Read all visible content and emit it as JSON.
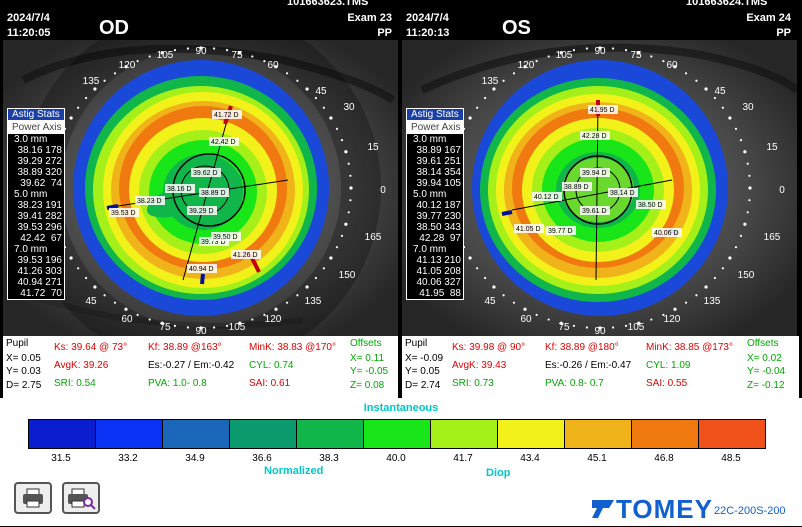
{
  "od": {
    "file": "101663623.TMS",
    "date": "2024/7/4",
    "time": "11:20:05",
    "exam": "Exam 23",
    "pp": "PP",
    "eye": "OD",
    "dial_labels": {
      "d90": "90",
      "d105": "105",
      "d120": "120",
      "d135": "135",
      "d150": "150",
      "d165": "165",
      "d0": "0",
      "d15": "15",
      "d30": "30",
      "d45": "45",
      "d60": "60",
      "d75": "75"
    },
    "dial_labels_bottom": {
      "d90": "90",
      "d105": "105",
      "d120": "120",
      "d135": "135",
      "d150": "150",
      "d165": "165",
      "d45": "45",
      "d60": "60",
      "d75": "75"
    },
    "map_labels": [
      "41.72 D",
      "42.42 D",
      "39.62 D",
      "38.16 D",
      "38.23 D",
      "38.89 D",
      "39.53 D",
      "39.29 D",
      "39.73 D",
      "39.50 D",
      "41.26 D",
      "40.94 D"
    ],
    "stats": {
      "hd1": "Astig Stats",
      "hd2": "Power Axis",
      "groups": [
        {
          "mm": "3.0 mm",
          "rows": [
            "38.16 178",
            "39.29 272",
            "38.89 320",
            "39.62  74"
          ]
        },
        {
          "mm": "5.0 mm",
          "rows": [
            "38.23 191",
            "39.41 282",
            "39.53 296",
            "42.42  67"
          ]
        },
        {
          "mm": "7.0 mm",
          "rows": [
            "39.53 196",
            "41.26 303",
            "40.94 271",
            "41.72  70"
          ]
        }
      ]
    },
    "info": {
      "pupil": "Pupil",
      "x": "X=  0.05",
      "y": "Y=  0.03",
      "d": "D=  2.75",
      "ks": "Ks: 39.64 @ 73°",
      "kf": "Kf: 38.89 @163°",
      "mink": "MinK: 38.83 @170°",
      "avgk": "AvgK: 39.26",
      "es": "Es:-0.27 / Em:-0.42",
      "cyl": "CYL:  0.74",
      "sri": "SRI:  0.54",
      "pva": "PVA:  1.0-  0.8",
      "sai": "SAI:  0.61",
      "offsets": "Offsets",
      "ox": "X=  0.11",
      "oy": "Y= -0.05",
      "oz": "Z=  0.08"
    }
  },
  "os": {
    "file": "101663624.TMS",
    "date": "2024/7/4",
    "time": "11:20:13",
    "exam": "Exam 24",
    "pp": "PP",
    "eye": "OS",
    "dial_labels": {
      "d90": "90",
      "d105": "105",
      "d120": "120",
      "d135": "135",
      "d150": "150",
      "d165": "165",
      "d0": "0",
      "d15": "15",
      "d30": "30",
      "d45": "45",
      "d60": "60",
      "d75": "75"
    },
    "dial_labels_bottom": {
      "d90": "90",
      "d105": "105",
      "d120": "120",
      "d135": "135",
      "d150": "150",
      "d165": "165",
      "d45": "45",
      "d60": "60",
      "d75": "75"
    },
    "map_labels": [
      "41.95 D",
      "42.28 D",
      "39.94 D",
      "38.89 D",
      "38.14 D",
      "40.12 D",
      "38.50 D",
      "39.61 D",
      "39.77 D",
      "41.05 D",
      "40.06 D"
    ],
    "stats": {
      "hd1": "Astig Stats",
      "hd2": "Power Axis",
      "groups": [
        {
          "mm": "3.0 mm",
          "rows": [
            "38.89 167",
            "39.61 251",
            "38.14 354",
            "39.94 105"
          ]
        },
        {
          "mm": "5.0 mm",
          "rows": [
            "40.12 187",
            "39.77 230",
            "38.50 343",
            "42.28  97"
          ]
        },
        {
          "mm": "7.0 mm",
          "rows": [
            "41.13 210",
            "41.05 208",
            "40.06 327",
            "41.95  88"
          ]
        }
      ]
    },
    "info": {
      "pupil": "Pupil",
      "x": "X= -0.09",
      "y": "Y=  0.05",
      "d": "D=  2.74",
      "ks": "Ks: 39.98 @ 90°",
      "kf": "Kf: 38.89 @180°",
      "mink": "MinK: 38.85 @173°",
      "avgk": "AvgK: 39.43",
      "es": "Es:-0.26 / Em:-0.47",
      "cyl": "CYL:  1.09",
      "sri": "SRI:  0.73",
      "pva": "PVA:  0.8-  0.7",
      "sai": "SAI:  0.55",
      "offsets": "Offsets",
      "ox": "X=  0.02",
      "oy": "Y= -0.04",
      "oz": "Z= -0.12"
    }
  },
  "scale": {
    "title": "Instantaneous",
    "normalized": "Normalized",
    "unit": "Diop",
    "ticks": [
      "31.5",
      "33.2",
      "34.9",
      "36.6",
      "38.3",
      "40.0",
      "41.7",
      "43.4",
      "45.1",
      "46.8",
      "48.5"
    ],
    "colors": [
      "#0a1ecf",
      "#0a32f5",
      "#1a66b8",
      "#0a9a6e",
      "#10b64a",
      "#19e619",
      "#a6f01a",
      "#f2f21a",
      "#f0b41a",
      "#f07a10",
      "#f0501a"
    ]
  },
  "icons": {
    "print": "printer-icon",
    "preview": "print-preview-icon"
  },
  "brand": {
    "logo": "TOMEY",
    "model": "22C-200S-200"
  }
}
